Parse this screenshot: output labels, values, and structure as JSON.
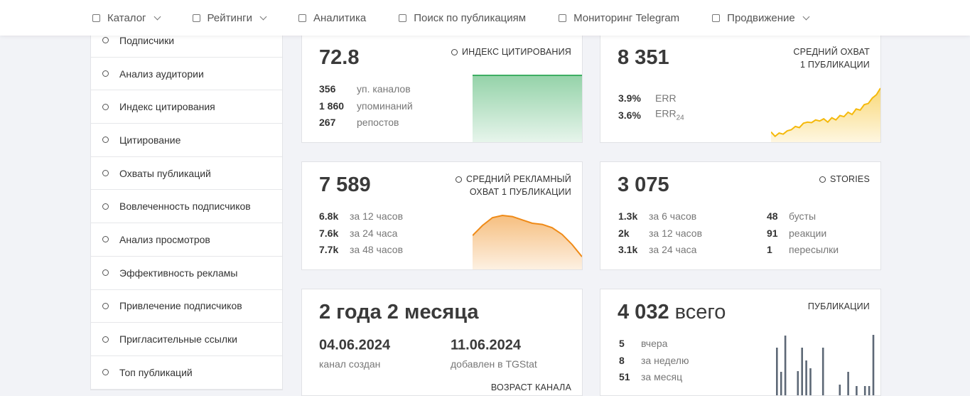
{
  "nav": [
    {
      "label": "Каталог",
      "dropdown": true
    },
    {
      "label": "Рейтинги",
      "dropdown": true
    },
    {
      "label": "Аналитика",
      "dropdown": false
    },
    {
      "label": "Поиск по публикациям",
      "dropdown": false
    },
    {
      "label": "Мониторинг Telegram",
      "dropdown": false
    },
    {
      "label": "Продвижение",
      "dropdown": true
    }
  ],
  "sidebar": [
    "Подписчики",
    "Анализ аудитории",
    "Индекс цитирования",
    "Цитирование",
    "Охваты публикаций",
    "Вовлеченность подписчиков",
    "Анализ просмотров",
    "Эффективность рекламы",
    "Привлечение подписчиков",
    "Пригласительные ссылки",
    "Топ публикаций"
  ],
  "cards": {
    "citation": {
      "value": "72.8",
      "label": "ИНДЕКС ЦИТИРОВАНИЯ",
      "stats": [
        {
          "number": "356",
          "text": "уп. каналов"
        },
        {
          "number": "1 860",
          "text": "упоминаний"
        },
        {
          "number": "267",
          "text": "репостов"
        }
      ],
      "sparkline": [
        100,
        100,
        100,
        100,
        100,
        100
      ],
      "color": "#3dae62"
    },
    "reach": {
      "value": "8 351",
      "label_lines": [
        "СРЕДНИЙ ОХВАТ",
        "1 ПУБЛИКАЦИИ"
      ],
      "stats": [
        {
          "number": "3.9%",
          "text": "ERR"
        },
        {
          "number": "3.6%",
          "text": "ERR",
          "sub": "24"
        }
      ],
      "sparkline": [
        20,
        12,
        18,
        16,
        22,
        24,
        30,
        28,
        36,
        38,
        37,
        42,
        40,
        44,
        38,
        46,
        42,
        50,
        48,
        56,
        52,
        62,
        60,
        70,
        72,
        82,
        88,
        100
      ],
      "color": "#f5b90b"
    },
    "ad_reach": {
      "value": "7 589",
      "label_lines": [
        "СРЕДНИЙ РЕКЛАМНЫЙ",
        "ОХВАТ 1 ПУБЛИКАЦИИ"
      ],
      "stats": [
        {
          "number": "6.8k",
          "text": "за 12 часов"
        },
        {
          "number": "7.6k",
          "text": "за 24 часа"
        },
        {
          "number": "7.7k",
          "text": "за 48 часов"
        }
      ],
      "sparkline": [
        62,
        80,
        94,
        98,
        96,
        90,
        84,
        82,
        76,
        64,
        46,
        24
      ],
      "color": "#ef8a17"
    },
    "stories": {
      "value": "3 075",
      "label": "STORIES",
      "stats": [
        {
          "number": "1.3k",
          "text": "за 6 часов"
        },
        {
          "number": "2k",
          "text": "за 12 часов"
        },
        {
          "number": "3.1k",
          "text": "за 24 часа"
        }
      ],
      "extra": [
        {
          "number": "48",
          "text": "бусты"
        },
        {
          "number": "91",
          "text": "реакции"
        },
        {
          "number": "1",
          "text": "пересылки"
        }
      ]
    },
    "age": {
      "value": "2 года 2 месяца",
      "dates": [
        {
          "date": "04.06.2024",
          "text": "канал создан"
        },
        {
          "date": "11.06.2024",
          "text": "добавлен в TGStat"
        }
      ],
      "label": "ВОЗРАСТ КАНАЛА"
    },
    "posts": {
      "value": "4 032",
      "unit": "всего",
      "label": "ПУБЛИКАЦИИ",
      "stats": [
        {
          "number": "5",
          "text": "вчера"
        },
        {
          "number": "8",
          "text": "за неделю"
        },
        {
          "number": "51",
          "text": "за месяц"
        }
      ],
      "bars": [
        69,
        35,
        86,
        0,
        0,
        36,
        69,
        51,
        40,
        0,
        0,
        69,
        0,
        0,
        0,
        17,
        0,
        35,
        0,
        15,
        0,
        15,
        15,
        87
      ],
      "color": "#5d6876"
    }
  }
}
